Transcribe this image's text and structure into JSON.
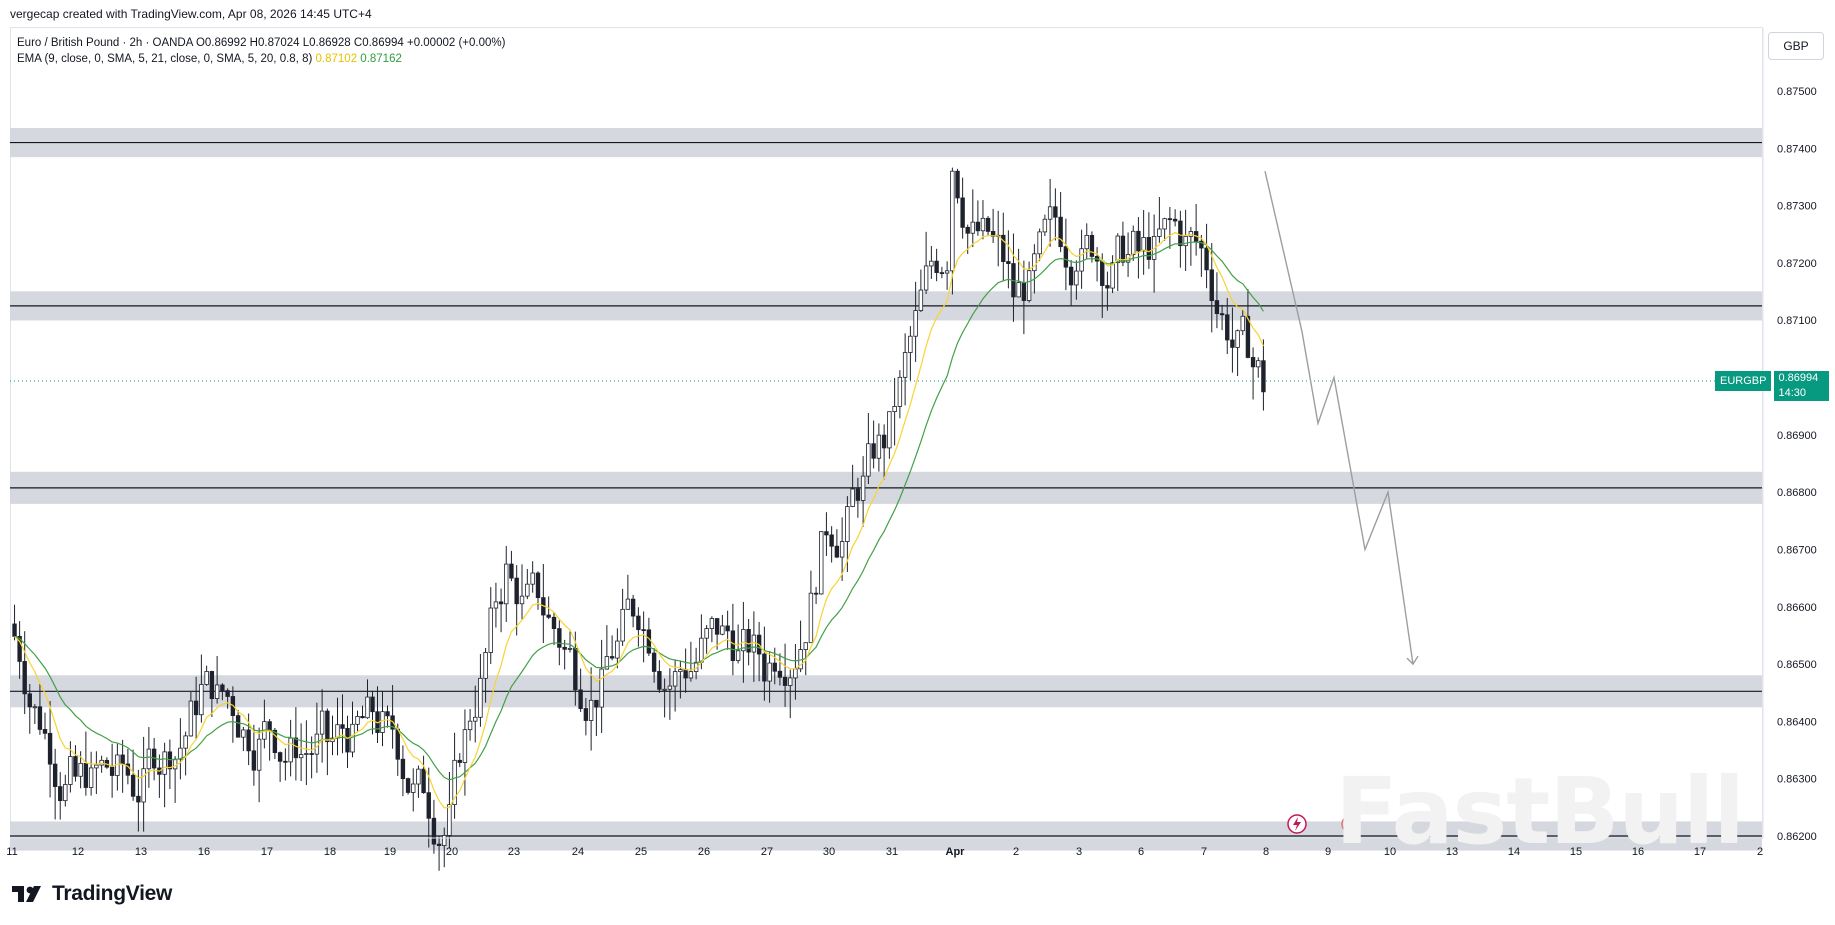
{
  "credit": "vergecap created with TradingView.com, Apr 08, 2026 14:45 UTC+4",
  "legend": {
    "line1": "Euro / British Pound · 2h · OANDA  O0.86992  H0.87024  L0.86928  C0.86994  +0.00002 (+0.00%)",
    "ema_label": "EMA (9, close, 0, SMA, 5, 21, close, 0, SMA, 5, 20, 0.8, 8)",
    "ema_fast_value": "0.87102",
    "ema_slow_value": "0.87162"
  },
  "currency": "GBP",
  "price_tag": {
    "symbol": "EURGBP",
    "price": "0.86994",
    "countdown": "14:30"
  },
  "brand": "TradingView",
  "watermark": "FastBull",
  "colors": {
    "up": "#089981",
    "down": "#f23645",
    "candle": "#1e222d",
    "ema_fast": "#f7d334",
    "ema_slow": "#43a047",
    "zone": "#d1d4dc",
    "projection": "#9e9e9e"
  },
  "chart_data": {
    "type": "candlestick",
    "symbol": "EURGBP",
    "timeframe": "2h",
    "ylim": [
      0.862,
      0.8757
    ],
    "y_ticks": [
      "0.87500",
      "0.87400",
      "0.87300",
      "0.87200",
      "0.87100",
      "0.86900",
      "0.86800",
      "0.86700",
      "0.86600",
      "0.86500",
      "0.86400",
      "0.86300",
      "0.86200"
    ],
    "x_ticks": [
      "11",
      "12",
      "13",
      "16",
      "17",
      "18",
      "19",
      "20",
      "23",
      "24",
      "25",
      "26",
      "27",
      "30",
      "31",
      "Apr",
      "2",
      "3",
      "6",
      "7",
      "8",
      "9",
      "10",
      "13",
      "14",
      "15",
      "16",
      "17",
      "2"
    ],
    "last_price": 0.86994,
    "zones": [
      {
        "low": 0.87395,
        "high": 0.87425
      },
      {
        "low": 0.8711,
        "high": 0.8714
      },
      {
        "low": 0.8679,
        "high": 0.86825
      },
      {
        "low": 0.86435,
        "high": 0.8647
      },
      {
        "low": 0.86185,
        "high": 0.86215
      }
    ],
    "key_points": [
      {
        "date": "Mar 11",
        "close": 0.8655
      },
      {
        "date": "Mar 12",
        "close": 0.863
      },
      {
        "date": "Mar 13",
        "close": 0.8628
      },
      {
        "date": "Mar 16",
        "close": 0.8645
      },
      {
        "date": "Mar 17",
        "close": 0.8638
      },
      {
        "date": "Mar 18",
        "close": 0.8637
      },
      {
        "date": "Mar 19",
        "close": 0.8638
      },
      {
        "date": "Mar 20",
        "close": 0.8622
      },
      {
        "date": "Mar 23",
        "close": 0.867
      },
      {
        "date": "Mar 24",
        "close": 0.865
      },
      {
        "date": "Mar 25",
        "close": 0.866
      },
      {
        "date": "Mar 26",
        "close": 0.8652
      },
      {
        "date": "Mar 27",
        "close": 0.865
      },
      {
        "date": "Mar 30",
        "close": 0.8675
      },
      {
        "date": "Mar 31",
        "close": 0.869
      },
      {
        "date": "Apr 1",
        "close": 0.8725
      },
      {
        "date": "Apr 2",
        "close": 0.8715
      },
      {
        "date": "Apr 3",
        "close": 0.8722
      },
      {
        "date": "Apr 6",
        "close": 0.8722
      },
      {
        "date": "Apr 7",
        "close": 0.8722
      },
      {
        "date": "Apr 8",
        "close": 0.86994
      }
    ],
    "projection": [
      {
        "date": "Apr 8",
        "price": 0.8736
      },
      {
        "date": "Apr 8",
        "price": 0.8708
      },
      {
        "date": "Apr 9",
        "price": 0.8692
      },
      {
        "date": "Apr 9",
        "price": 0.87
      },
      {
        "date": "Apr 10",
        "price": 0.867
      },
      {
        "date": "Apr 10",
        "price": 0.868
      },
      {
        "date": "Apr 13",
        "price": 0.865
      }
    ]
  }
}
